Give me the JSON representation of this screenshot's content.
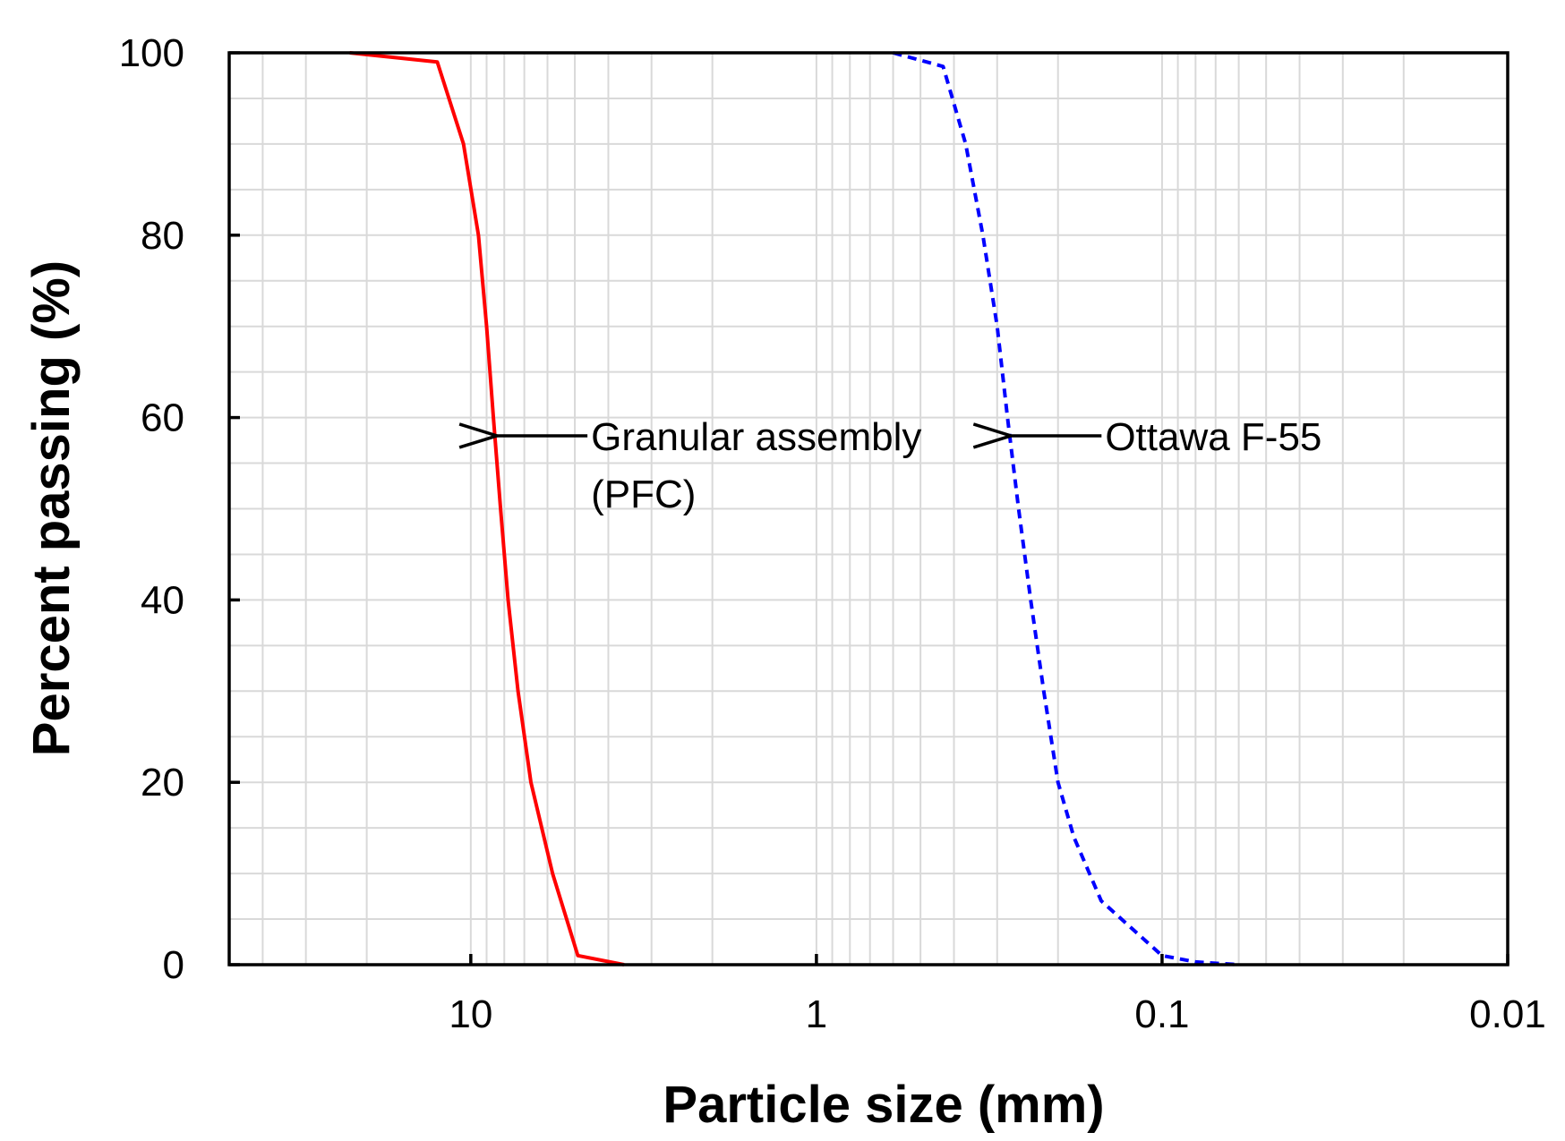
{
  "chart_data": {
    "type": "line",
    "xlabel": "Particle size (mm)",
    "ylabel": "Percent passing (%)",
    "x_scale": "log",
    "x_reversed": true,
    "xlim": [
      50,
      0.01
    ],
    "ylim": [
      0,
      100
    ],
    "x_ticks": [
      10,
      1,
      0.1,
      0.01
    ],
    "x_tick_labels": [
      "10",
      "1",
      "0.1",
      "0.01"
    ],
    "y_ticks": [
      0,
      20,
      40,
      60,
      80,
      100
    ],
    "y_tick_labels": [
      "0",
      "20",
      "40",
      "60",
      "80",
      "100"
    ],
    "grid": true,
    "series": [
      {
        "color": "#ff0000",
        "line_style": "solid",
        "points": [
          [
            22.4,
            100
          ],
          [
            12.5,
            99
          ],
          [
            10.5,
            90
          ],
          [
            9.5,
            80
          ],
          [
            9.0,
            70
          ],
          [
            8.6,
            60
          ],
          [
            8.2,
            50
          ],
          [
            7.8,
            40
          ],
          [
            7.3,
            30
          ],
          [
            6.7,
            20
          ],
          [
            5.8,
            10
          ],
          [
            4.9,
            1
          ],
          [
            3.6,
            0
          ]
        ]
      },
      {
        "color": "#0000ff",
        "line_style": "dashed",
        "points": [
          [
            0.6,
            100
          ],
          [
            0.43,
            98.5
          ],
          [
            0.37,
            90
          ],
          [
            0.33,
            80
          ],
          [
            0.3,
            70
          ],
          [
            0.28,
            60
          ],
          [
            0.26,
            50
          ],
          [
            0.24,
            40
          ],
          [
            0.22,
            30
          ],
          [
            0.2,
            20
          ],
          [
            0.18,
            14
          ],
          [
            0.15,
            7
          ],
          [
            0.1,
            1
          ],
          [
            0.08,
            0.3
          ],
          [
            0.06,
            0
          ]
        ]
      }
    ],
    "annotations": [
      {
        "lines": [
          "Granular assembly",
          "(PFC)"
        ],
        "target": [
          8.6,
          58
        ]
      },
      {
        "lines": [
          "Ottawa F-55"
        ],
        "target": [
          0.28,
          58
        ]
      }
    ]
  }
}
